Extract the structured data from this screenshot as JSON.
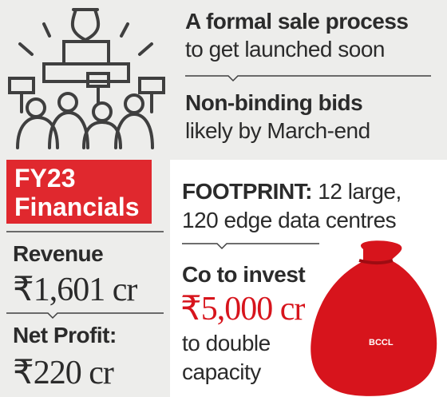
{
  "header": {
    "lines": [
      "A formal sale process",
      "to get launched soon"
    ]
  },
  "bids": {
    "lines": [
      "Non-binding bids",
      "likely by March-end"
    ]
  },
  "financials": {
    "title": [
      "FY23",
      "Financials"
    ],
    "revenue": {
      "label": "Revenue",
      "value": "₹1,601 cr"
    },
    "net_profit": {
      "label": "Net Profit:",
      "value": "₹220 cr"
    }
  },
  "footprint": {
    "label": "FOOTPRINT:",
    "line1": " 12 large,",
    "line2": "120 edge data centres"
  },
  "investment": {
    "label": "Co to invest",
    "value": "₹5,000 cr",
    "lines": [
      "to double",
      "capacity"
    ]
  },
  "credit": "BCCL"
}
